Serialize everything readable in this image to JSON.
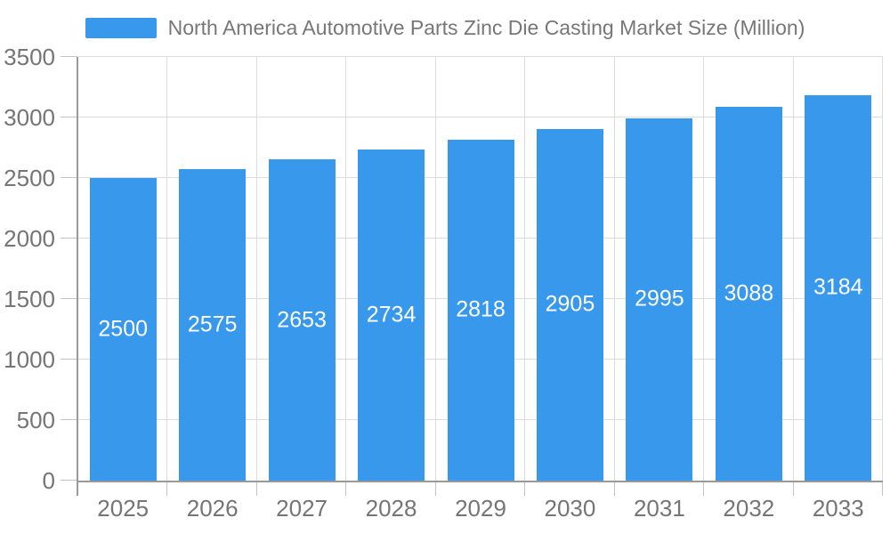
{
  "chart_data": {
    "type": "bar",
    "title": "North America Automotive Parts Zinc Die Casting Market Size (Million)",
    "categories": [
      "2025",
      "2026",
      "2027",
      "2028",
      "2029",
      "2030",
      "2031",
      "2032",
      "2033"
    ],
    "values": [
      2500,
      2575,
      2653,
      2734,
      2818,
      2905,
      2995,
      3088,
      3184
    ],
    "xlabel": "",
    "ylabel": "",
    "ylim": [
      0,
      3500
    ],
    "ytick_interval": 500,
    "yticks": [
      "0",
      "500",
      "1000",
      "1500",
      "2000",
      "2500",
      "3000",
      "3500"
    ],
    "grid": true,
    "legend_position": "top-center",
    "value_label_position": "inside-middle",
    "colors": {
      "bar": "#3898EC",
      "value_label": "#FFFFFF",
      "axis_text": "#757575",
      "title_text": "#777777",
      "grid_line": "#DCDCDC",
      "axis_line": "#999999",
      "tick_line": "#C2C2C2",
      "background": "#FFFFFF"
    }
  }
}
